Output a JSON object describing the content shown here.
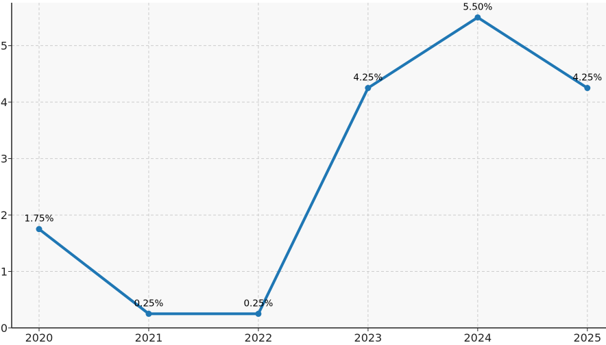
{
  "chart_data": {
    "type": "line",
    "title": "",
    "xlabel": "",
    "ylabel": "",
    "x": [
      "2020",
      "2021",
      "2022",
      "2023",
      "2024",
      "2025"
    ],
    "series": [
      {
        "values": [
          1.75,
          0.25,
          0.25,
          4.25,
          5.5,
          4.25
        ],
        "labels": [
          "1.75%",
          "0.25%",
          "0.25%",
          "4.25%",
          "5.50%",
          "4.25%"
        ]
      }
    ],
    "xlim": [
      2019.75,
      2025.17
    ],
    "ylim": [
      0,
      5.76
    ],
    "yticks": [
      "0",
      "1",
      "2",
      "3",
      "4",
      "5"
    ],
    "grid": true,
    "legend": "none",
    "colors": {
      "line": "#1f77b4",
      "plot_bg": "#f8f8f8",
      "grid": "#cccccc"
    }
  }
}
